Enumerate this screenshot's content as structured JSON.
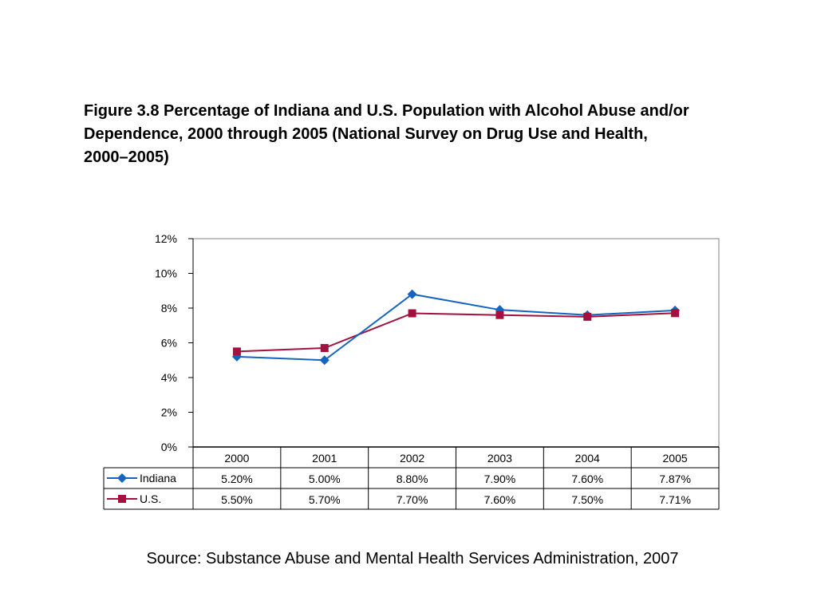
{
  "title": "Figure 3.8 Percentage of Indiana and U.S. Population with Alcohol Abuse and/or Dependence, 2000 through 2005 (National Survey on Drug Use and Health, 2000–2005)",
  "source": "Source: Substance Abuse and Mental Health Services Administration, 2007",
  "chart_data": {
    "type": "line",
    "title": "",
    "xlabel": "",
    "ylabel": "",
    "categories": [
      "2000",
      "2001",
      "2002",
      "2003",
      "2004",
      "2005"
    ],
    "ylim": [
      0,
      12
    ],
    "yticks": [
      0,
      2,
      4,
      6,
      8,
      10,
      12
    ],
    "ytick_labels": [
      "0%",
      "2%",
      "4%",
      "6%",
      "8%",
      "10%",
      "12%"
    ],
    "grid": false,
    "legend": "data-table",
    "series": [
      {
        "name": "Indiana",
        "values": [
          5.2,
          5.0,
          8.8,
          7.9,
          7.6,
          7.87
        ],
        "table_labels": [
          "5.20%",
          "5.00%",
          "8.80%",
          "7.90%",
          "7.60%",
          "7.87%"
        ],
        "color": "#1565C0",
        "marker": "diamond"
      },
      {
        "name": "U.S.",
        "values": [
          5.5,
          5.7,
          7.7,
          7.6,
          7.5,
          7.71
        ],
        "table_labels": [
          "5.50%",
          "5.70%",
          "7.70%",
          "7.60%",
          "7.50%",
          "7.71%"
        ],
        "color": "#A3123F",
        "marker": "square"
      }
    ]
  }
}
